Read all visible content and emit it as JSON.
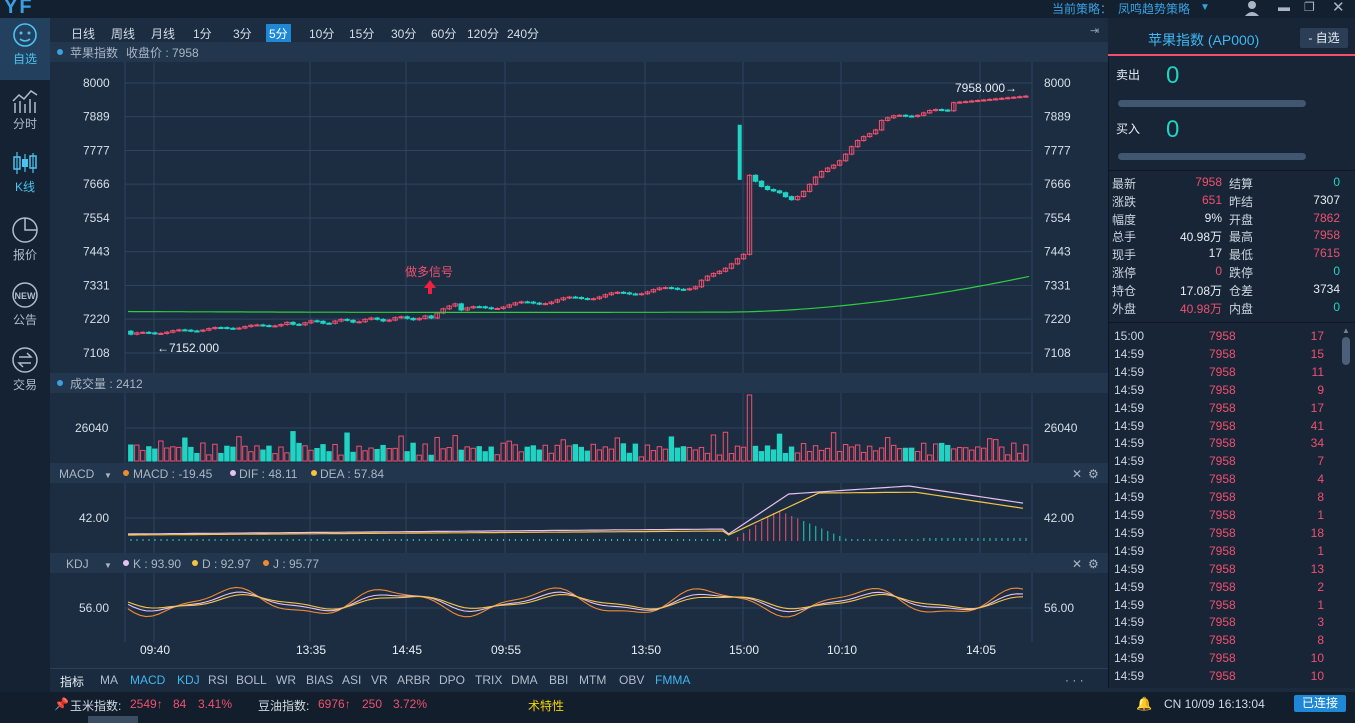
{
  "app": {
    "logo": "YF",
    "strategy_label": "当前策略：",
    "strategy_value": "凤鸣趋势策略"
  },
  "sidebar": [
    {
      "label": "自选",
      "icon": "face-icon",
      "active": true
    },
    {
      "label": "分时",
      "icon": "timeshare-icon",
      "active": false
    },
    {
      "label": "K线",
      "icon": "candlestick-icon",
      "active": true
    },
    {
      "label": "报价",
      "icon": "pie-icon",
      "active": false
    },
    {
      "label": "公告",
      "icon": "new-icon",
      "active": false
    },
    {
      "label": "交易",
      "icon": "exchange-icon",
      "active": false
    }
  ],
  "periods": [
    "日线",
    "周线",
    "月线",
    "1分",
    "3分",
    "5分",
    "10分",
    "15分",
    "30分",
    "60分",
    "120分",
    "240分"
  ],
  "active_period": "5分",
  "main_chart": {
    "title": "苹果指数",
    "close_label": "收盘价 : 7958",
    "y_ticks": [
      "8000",
      "7889",
      "7777",
      "7666",
      "7554",
      "7443",
      "7331",
      "7220",
      "7108"
    ],
    "signal": "做多信号",
    "max_label": "7958.000→",
    "min_label": "←7152.000"
  },
  "volume": {
    "title": "成交量 : 2412",
    "tick": "26040"
  },
  "macd": {
    "name": "MACD",
    "macd": "MACD : -19.45",
    "dif": "DIF : 48.11",
    "dea": "DEA : 57.84",
    "tick": "42.00"
  },
  "kdj": {
    "name": "KDJ",
    "k": "K : 93.90",
    "d": "D : 92.97",
    "j": "J : 95.77",
    "tick": "56.00"
  },
  "x_labels": [
    "09:40",
    "13:35",
    "14:45",
    "09:55",
    "13:50",
    "15:00",
    "10:10",
    "14:05"
  ],
  "indicators": [
    "指标",
    "MA",
    "MACD",
    "KDJ",
    "RSI",
    "BOLL",
    "WR",
    "BIAS",
    "ASI",
    "VR",
    "ARBR",
    "DPO",
    "TRIX",
    "DMA",
    "BBI",
    "MTM",
    "OBV",
    "FMMA"
  ],
  "indicators_highlight": [
    "MACD",
    "KDJ",
    "FMMA"
  ],
  "right": {
    "title": "苹果指数 (AP000)",
    "watch_button": "- 自选",
    "sell_label": "卖出",
    "sell_value": "0",
    "buy_label": "买入",
    "buy_value": "0",
    "stats": [
      {
        "l1": "最新",
        "v1": "7958",
        "c1": "red",
        "l2": "结算",
        "v2": "0",
        "c2": "green"
      },
      {
        "l1": "涨跌",
        "v1": "651",
        "c1": "red",
        "l2": "昨结",
        "v2": "7307",
        "c2": "white"
      },
      {
        "l1": "幅度",
        "v1": "9%",
        "c1": "white",
        "l2": "开盘",
        "v2": "7862",
        "c2": "red"
      },
      {
        "l1": "总手",
        "v1": "40.98万",
        "c1": "white",
        "l2": "最高",
        "v2": "7958",
        "c2": "red"
      },
      {
        "l1": "现手",
        "v1": "17",
        "c1": "white",
        "l2": "最低",
        "v2": "7615",
        "c2": "red"
      },
      {
        "l1": "涨停",
        "v1": "0",
        "c1": "red",
        "l2": "跌停",
        "v2": "0",
        "c2": "green"
      },
      {
        "l1": "持仓",
        "v1": "17.08万",
        "c1": "white",
        "l2": "仓差",
        "v2": "3734",
        "c2": "white"
      },
      {
        "l1": "外盘",
        "v1": "40.98万",
        "c1": "red",
        "l2": "内盘",
        "v2": "0",
        "c2": "green"
      }
    ],
    "ticks": [
      {
        "t": "15:00",
        "p": "7958",
        "v": "17"
      },
      {
        "t": "14:59",
        "p": "7958",
        "v": "15"
      },
      {
        "t": "14:59",
        "p": "7958",
        "v": "11"
      },
      {
        "t": "14:59",
        "p": "7958",
        "v": "9"
      },
      {
        "t": "14:59",
        "p": "7958",
        "v": "17"
      },
      {
        "t": "14:59",
        "p": "7958",
        "v": "41"
      },
      {
        "t": "14:59",
        "p": "7958",
        "v": "34"
      },
      {
        "t": "14:59",
        "p": "7958",
        "v": "7"
      },
      {
        "t": "14:59",
        "p": "7958",
        "v": "4"
      },
      {
        "t": "14:59",
        "p": "7958",
        "v": "8"
      },
      {
        "t": "14:59",
        "p": "7958",
        "v": "1"
      },
      {
        "t": "14:59",
        "p": "7958",
        "v": "18"
      },
      {
        "t": "14:59",
        "p": "7958",
        "v": "1"
      },
      {
        "t": "14:59",
        "p": "7958",
        "v": "13"
      },
      {
        "t": "14:59",
        "p": "7958",
        "v": "2"
      },
      {
        "t": "14:59",
        "p": "7958",
        "v": "1"
      },
      {
        "t": "14:59",
        "p": "7958",
        "v": "3"
      },
      {
        "t": "14:59",
        "p": "7958",
        "v": "8"
      },
      {
        "t": "14:59",
        "p": "7958",
        "v": "10"
      },
      {
        "t": "14:59",
        "p": "7958",
        "v": "10"
      }
    ]
  },
  "status": {
    "corn_label": "玉米指数:",
    "corn_price": "2549↑",
    "corn_change": "84",
    "corn_pct": "3.41%",
    "soy_label": "豆油指数:",
    "soy_price": "6976↑",
    "soy_change": "250",
    "soy_pct": "3.72%",
    "feature": "术特性",
    "datetime": "CN 10/09 16:13:04",
    "connection": "已连接"
  },
  "colors": {
    "up": "#f0506e",
    "down": "#20d3c2",
    "accent": "#1f88d6",
    "ma": "#2ecc40"
  }
}
